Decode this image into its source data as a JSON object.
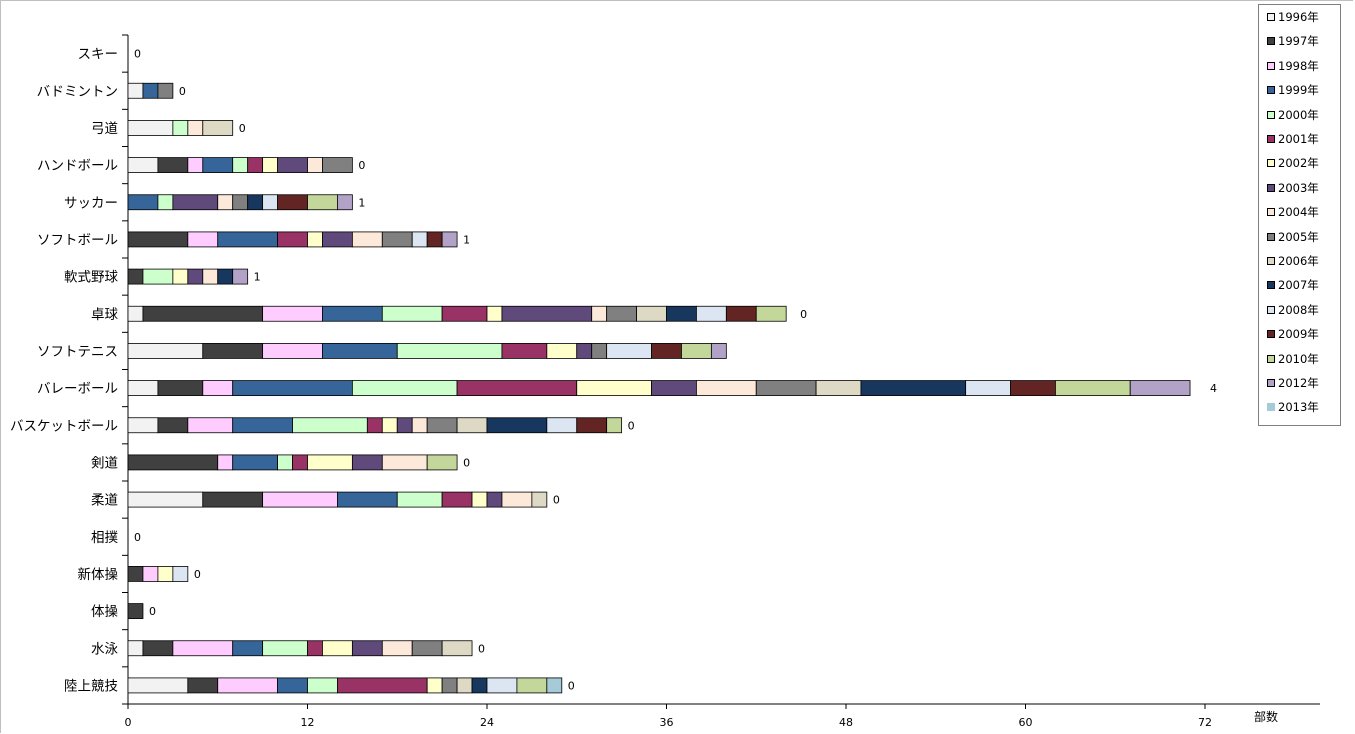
{
  "chart_data": {
    "type": "bar",
    "orientation": "horizontal",
    "stacked": true,
    "xlabel": "部数",
    "xlim": [
      0,
      72
    ],
    "xticks": [
      0,
      12,
      24,
      36,
      48,
      60,
      72
    ],
    "categories": [
      "陸上競技",
      "水泳",
      "体操",
      "新体操",
      "相撲",
      "柔道",
      "剣道",
      "バスケットボール",
      "バレーボール",
      "ソフトテニス",
      "卓球",
      "軟式野球",
      "ソフトボール",
      "サッカー",
      "ハンドボール",
      "弓道",
      "バドミントン",
      "スキー"
    ],
    "end_labels": [
      "0",
      "0",
      "0",
      "0",
      "0",
      "0",
      "0",
      "0",
      "4",
      "",
      "0",
      "1",
      "1",
      "1",
      "0",
      "0",
      "0",
      "0"
    ],
    "series": [
      {
        "name": "1996年",
        "color": "#f2f2f2",
        "values": [
          4,
          1,
          0,
          0,
          0,
          5,
          0,
          2,
          2,
          5,
          1,
          0,
          0,
          0,
          2,
          3,
          1,
          0
        ]
      },
      {
        "name": "1997年",
        "color": "#404040",
        "values": [
          2,
          2,
          1,
          1,
          0,
          4,
          6,
          2,
          3,
          4,
          8,
          1,
          4,
          0,
          2,
          0,
          0,
          0
        ]
      },
      {
        "name": "1998年",
        "color": "#ffccff",
        "values": [
          4,
          4,
          0,
          1,
          0,
          5,
          1,
          3,
          2,
          4,
          4,
          0,
          2,
          0,
          1,
          0,
          0,
          0
        ]
      },
      {
        "name": "1999年",
        "color": "#36659a",
        "values": [
          2,
          2,
          0,
          0,
          0,
          4,
          3,
          4,
          8,
          5,
          4,
          0,
          4,
          2,
          2,
          0,
          1,
          0
        ]
      },
      {
        "name": "2000年",
        "color": "#ccffcc",
        "values": [
          2,
          3,
          0,
          0,
          0,
          3,
          1,
          5,
          7,
          7,
          4,
          2,
          0,
          1,
          1,
          1,
          0,
          0
        ]
      },
      {
        "name": "2001年",
        "color": "#993366",
        "values": [
          6,
          1,
          0,
          0,
          0,
          2,
          1,
          1,
          8,
          3,
          3,
          0,
          2,
          0,
          1,
          0,
          0,
          0
        ]
      },
      {
        "name": "2002年",
        "color": "#ffffcc",
        "values": [
          1,
          2,
          0,
          1,
          0,
          1,
          3,
          1,
          5,
          2,
          1,
          1,
          1,
          0,
          1,
          0,
          0,
          0
        ]
      },
      {
        "name": "2003年",
        "color": "#604a7b",
        "values": [
          0,
          2,
          0,
          0,
          0,
          1,
          2,
          1,
          3,
          1,
          6,
          1,
          2,
          3,
          2,
          0,
          0,
          0
        ]
      },
      {
        "name": "2004年",
        "color": "#fde9d9",
        "values": [
          0,
          2,
          0,
          0,
          0,
          2,
          3,
          1,
          4,
          0,
          1,
          1,
          2,
          1,
          1,
          1,
          0,
          0
        ]
      },
      {
        "name": "2005年",
        "color": "#808080",
        "values": [
          1,
          2,
          0,
          0,
          0,
          0,
          0,
          2,
          4,
          1,
          2,
          0,
          2,
          1,
          2,
          0,
          1,
          0
        ]
      },
      {
        "name": "2006年",
        "color": "#ddd9c4",
        "values": [
          1,
          2,
          0,
          0,
          0,
          1,
          0,
          2,
          3,
          0,
          2,
          0,
          0,
          0,
          0,
          2,
          0,
          0
        ]
      },
      {
        "name": "2007年",
        "color": "#17375e",
        "values": [
          1,
          0,
          0,
          0,
          0,
          0,
          0,
          4,
          7,
          0,
          2,
          1,
          0,
          1,
          0,
          0,
          0,
          0
        ]
      },
      {
        "name": "2008年",
        "color": "#dce6f2",
        "values": [
          2,
          0,
          0,
          1,
          0,
          0,
          0,
          2,
          3,
          3,
          2,
          0,
          1,
          1,
          0,
          0,
          0,
          0
        ]
      },
      {
        "name": "2009年",
        "color": "#632523",
        "values": [
          0,
          0,
          0,
          0,
          0,
          0,
          0,
          2,
          3,
          2,
          2,
          0,
          1,
          2,
          0,
          0,
          0,
          0
        ]
      },
      {
        "name": "2010年",
        "color": "#c4d79b",
        "values": [
          2,
          0,
          0,
          0,
          0,
          0,
          2,
          1,
          5,
          2,
          2,
          0,
          0,
          2,
          0,
          0,
          0,
          0
        ]
      },
      {
        "name": "2012年",
        "color": "#b3a2c7",
        "values": [
          0,
          0,
          0,
          0,
          0,
          0,
          0,
          0,
          4,
          1,
          0,
          1,
          1,
          1,
          0,
          0,
          0,
          0
        ]
      },
      {
        "name": "2013年",
        "color": "#a5cbd9",
        "values": [
          1,
          0,
          0,
          0,
          0,
          0,
          0,
          0,
          0,
          0,
          0,
          0,
          0,
          0,
          0,
          0,
          0,
          0
        ]
      }
    ]
  }
}
